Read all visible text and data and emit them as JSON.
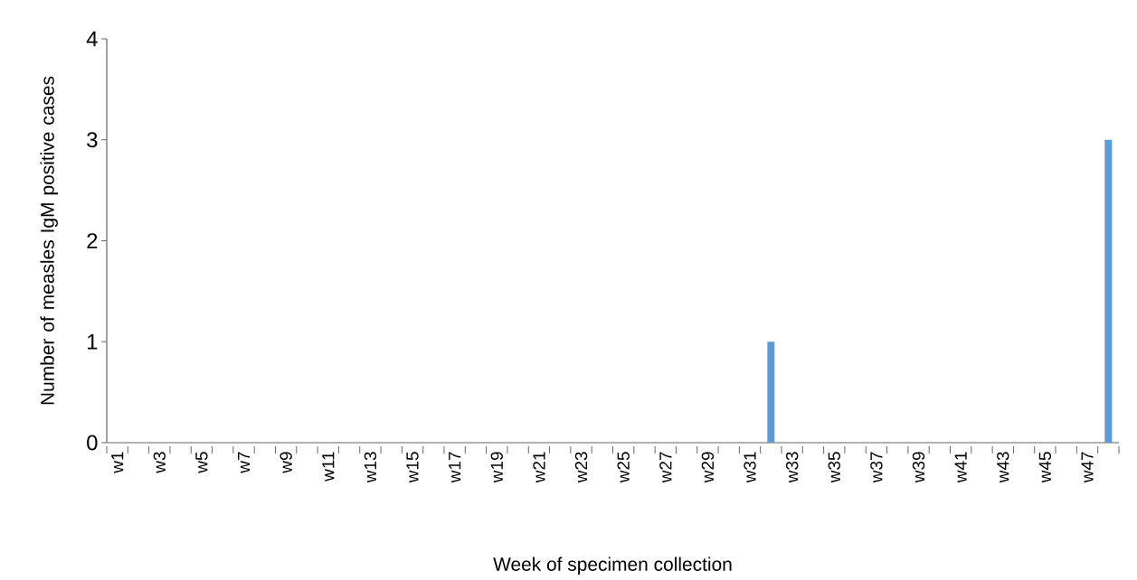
{
  "chart_data": {
    "type": "bar",
    "xlabel": "Week of specimen collection",
    "ylabel": "Number of measles IgM positive cases",
    "categories": [
      "w1",
      null,
      "w3",
      null,
      "w5",
      null,
      "w7",
      null,
      "w9",
      null,
      "w11",
      null,
      "w13",
      null,
      "w15",
      null,
      "w17",
      null,
      "w19",
      null,
      "w21",
      null,
      "w23",
      null,
      "w25",
      null,
      "w27",
      null,
      "w29",
      null,
      "w31",
      null,
      "w33",
      null,
      "w35",
      null,
      "w37",
      null,
      "w39",
      null,
      "w41",
      null,
      "w43",
      null,
      "w45",
      null,
      "w47",
      null
    ],
    "values": [
      0,
      0,
      0,
      0,
      0,
      0,
      0,
      0,
      0,
      0,
      0,
      0,
      0,
      0,
      0,
      0,
      0,
      0,
      0,
      0,
      0,
      0,
      0,
      0,
      0,
      0,
      0,
      0,
      0,
      0,
      0,
      1,
      0,
      0,
      0,
      0,
      0,
      0,
      0,
      0,
      0,
      0,
      0,
      0,
      0,
      0,
      0,
      3
    ],
    "color": "#5b9bd5",
    "ylim": [
      0,
      4
    ],
    "yticks": [
      0,
      1,
      2,
      3,
      4
    ],
    "grid": false
  }
}
